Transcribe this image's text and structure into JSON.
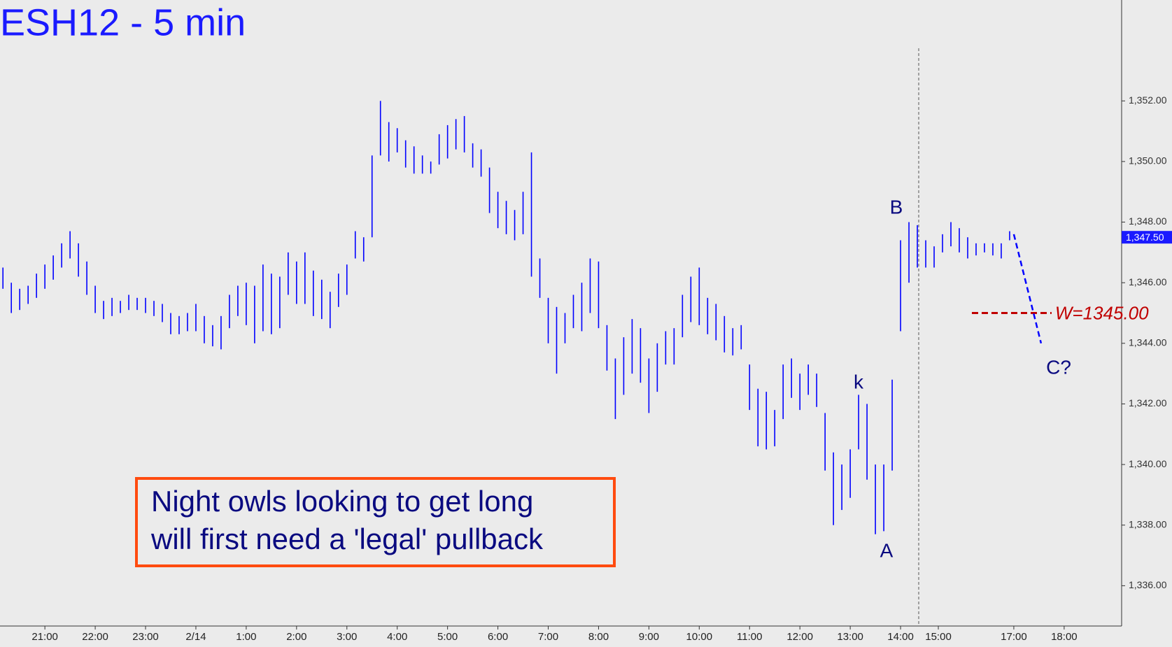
{
  "chart_data": {
    "type": "ohlc",
    "title": "ESH12 - 5 min",
    "color": "#0000ff",
    "x": [
      -10,
      -8,
      -6,
      -4,
      -2,
      0,
      2,
      4,
      6,
      8,
      10,
      12,
      14,
      16,
      18,
      20,
      22,
      24,
      26,
      28,
      30,
      32,
      34,
      36,
      38,
      40,
      42,
      44,
      46,
      48,
      50,
      52,
      54,
      56,
      58,
      60,
      62,
      64,
      66,
      68,
      70,
      72,
      74,
      76,
      78,
      80,
      82,
      84,
      86,
      88,
      90,
      92,
      94,
      96,
      98,
      100,
      102,
      104,
      106,
      108,
      110,
      112,
      114,
      116,
      118,
      120,
      122,
      124,
      126,
      128,
      130,
      132,
      134,
      136,
      138,
      140,
      142,
      144,
      146,
      148,
      150,
      152,
      154,
      156,
      158,
      160,
      162,
      164,
      166,
      168,
      170,
      172,
      174,
      176,
      178,
      180,
      182,
      184,
      186,
      188,
      190,
      192,
      194,
      196,
      198,
      200,
      202,
      204,
      206,
      208,
      210,
      212,
      214,
      216,
      218,
      220,
      222,
      224,
      226,
      228,
      230
    ],
    "high": [
      1346.5,
      1346.0,
      1345.8,
      1345.9,
      1346.3,
      1346.6,
      1346.9,
      1347.3,
      1347.7,
      1347.3,
      1346.7,
      1345.9,
      1345.4,
      1345.5,
      1345.4,
      1345.6,
      1345.5,
      1345.5,
      1345.4,
      1345.3,
      1345.0,
      1344.9,
      1345.0,
      1345.3,
      1344.9,
      1344.6,
      1344.9,
      1345.6,
      1345.9,
      1346.0,
      1345.9,
      1346.6,
      1346.3,
      1346.2,
      1347.0,
      1346.7,
      1347.0,
      1346.4,
      1346.1,
      1345.7,
      1346.3,
      1346.6,
      1347.7,
      1347.5,
      1350.2,
      1352.0,
      1351.3,
      1351.1,
      1350.7,
      1350.5,
      1350.2,
      1350.0,
      1350.9,
      1351.2,
      1351.4,
      1351.5,
      1350.6,
      1350.4,
      1349.8,
      1349.0,
      1348.7,
      1348.4,
      1349.0,
      1350.3,
      1346.8,
      1345.5,
      1345.2,
      1345.0,
      1345.6,
      1346.0,
      1346.8,
      1346.7,
      1344.6,
      1343.5,
      1344.2,
      1344.8,
      1344.5,
      1343.5,
      1344.0,
      1344.4,
      1344.5,
      1345.6,
      1346.2,
      1346.5,
      1345.5,
      1345.3,
      1344.9,
      1344.5,
      1344.6,
      1343.3,
      1342.5,
      1342.4,
      1341.8,
      1343.3,
      1343.5,
      1343.0,
      1343.3,
      1343.0,
      1341.7,
      1340.4,
      1340.0,
      1340.5,
      1342.3,
      1342.0,
      1340.0,
      1340.0,
      1342.8,
      1347.4,
      1348.0,
      1347.9,
      1347.4,
      1347.2,
      1347.6,
      1348.0,
      1347.8,
      1347.5,
      1347.3,
      1347.3,
      1347.3,
      1347.3,
      1347.7
    ],
    "low": [
      1345.8,
      1345.0,
      1345.1,
      1345.3,
      1345.5,
      1345.8,
      1346.1,
      1346.5,
      1346.8,
      1346.2,
      1345.6,
      1345.0,
      1344.8,
      1344.9,
      1345.0,
      1345.1,
      1345.1,
      1345.0,
      1344.9,
      1344.7,
      1344.3,
      1344.3,
      1344.4,
      1344.4,
      1344.0,
      1343.9,
      1343.8,
      1344.5,
      1344.9,
      1344.6,
      1344.0,
      1344.4,
      1344.3,
      1344.5,
      1345.6,
      1345.3,
      1345.3,
      1344.9,
      1344.8,
      1344.5,
      1345.2,
      1345.6,
      1346.8,
      1346.7,
      1347.5,
      1350.2,
      1350.0,
      1350.3,
      1349.8,
      1349.6,
      1349.6,
      1349.6,
      1349.9,
      1350.1,
      1350.4,
      1350.3,
      1349.8,
      1349.5,
      1348.3,
      1347.8,
      1347.6,
      1347.4,
      1347.6,
      1346.2,
      1345.5,
      1344.0,
      1343.0,
      1344.0,
      1344.5,
      1344.4,
      1345.0,
      1344.5,
      1343.1,
      1341.5,
      1342.3,
      1343.0,
      1342.7,
      1341.7,
      1342.4,
      1343.3,
      1343.3,
      1344.2,
      1344.7,
      1344.6,
      1344.3,
      1344.1,
      1343.7,
      1343.6,
      1343.8,
      1341.8,
      1340.6,
      1340.5,
      1340.6,
      1341.5,
      1342.2,
      1341.8,
      1342.3,
      1341.9,
      1339.8,
      1338.0,
      1338.5,
      1338.9,
      1340.5,
      1339.5,
      1337.7,
      1337.8,
      1339.8,
      1344.4,
      1346.0,
      1346.5,
      1346.5,
      1346.5,
      1347.0,
      1347.2,
      1347.0,
      1346.8,
      1346.9,
      1347.0,
      1346.9,
      1346.8,
      1347.4
    ],
    "xlim": [
      -10.7,
      256.7
    ],
    "ylim": [
      1334.67,
      1355.33
    ],
    "xticks": [
      {
        "value": 0,
        "label": "21:00"
      },
      {
        "value": 12,
        "label": "22:00"
      },
      {
        "value": 24,
        "label": "23:00"
      },
      {
        "value": 36,
        "label": "2/14"
      },
      {
        "value": 48,
        "label": "1:00"
      },
      {
        "value": 60,
        "label": "2:00"
      },
      {
        "value": 72,
        "label": "3:00"
      },
      {
        "value": 84,
        "label": "4:00"
      },
      {
        "value": 96,
        "label": "5:00"
      },
      {
        "value": 108,
        "label": "6:00"
      },
      {
        "value": 120,
        "label": "7:00"
      },
      {
        "value": 132,
        "label": "8:00"
      },
      {
        "value": 144,
        "label": "9:00"
      },
      {
        "value": 156,
        "label": "10:00"
      },
      {
        "value": 168,
        "label": "11:00"
      },
      {
        "value": 180,
        "label": "12:00"
      },
      {
        "value": 192,
        "label": "13:00"
      },
      {
        "value": 204,
        "label": "14:00"
      },
      {
        "value": 213,
        "label": "15:00"
      },
      {
        "value": 231,
        "label": "17:00"
      },
      {
        "value": 243,
        "label": "18:00"
      }
    ],
    "yticks": [
      {
        "value": 1336,
        "label": "1,336.00"
      },
      {
        "value": 1338,
        "label": "1,338.00"
      },
      {
        "value": 1340,
        "label": "1,340.00"
      },
      {
        "value": 1342,
        "label": "1,342.00"
      },
      {
        "value": 1344,
        "label": "1,344.00"
      },
      {
        "value": 1346,
        "label": "1,346.00"
      },
      {
        "value": 1348,
        "label": "1,348.00"
      },
      {
        "value": 1350,
        "label": "1,350.00"
      },
      {
        "value": 1352,
        "label": "1,352.00"
      }
    ],
    "last_price": {
      "value": 1347.5,
      "label": "1,347.50"
    },
    "target": {
      "value": 1345,
      "label": "W=1345.00",
      "color": "#c00000",
      "x": [
        221,
        240
      ]
    },
    "projection": {
      "x": [
        231,
        237.5
      ],
      "y": [
        1347.6,
        1344.0
      ]
    },
    "wave_labels": [
      "B",
      "k",
      "A",
      "C?"
    ],
    "note": [
      "Night owls looking to get long",
      "will first need a 'legal' pullback"
    ]
  }
}
